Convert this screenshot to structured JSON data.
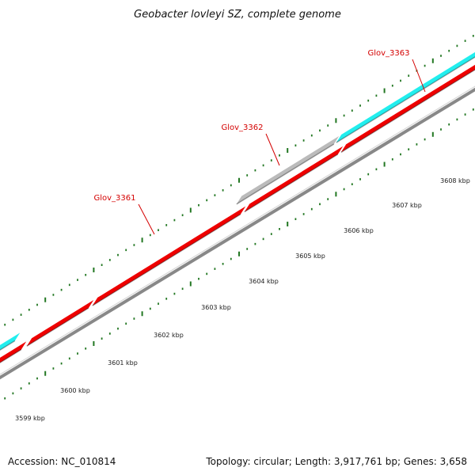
{
  "title": "Geobacter lovleyi SZ, complete genome",
  "footer": {
    "accession": "Accession: NC_010814",
    "summary": "Topology: circular; Length: 3,917,761 bp; Genes: 3,658"
  },
  "colors": {
    "forward_gene": "#22eeee",
    "reverse_gene": "#ee0000",
    "other_gene": "#bbbbbb",
    "backbone": "#888888",
    "tick": "#227722",
    "gene_label": "#d40000"
  },
  "gene_labels": [
    "Glov_3361",
    "Glov_3362",
    "Glov_3363"
  ],
  "kbp_labels": [
    "3599 kbp",
    "3600 kbp",
    "3601 kbp",
    "3602 kbp",
    "3603 kbp",
    "3604 kbp",
    "3605 kbp",
    "3606 kbp",
    "3607 kbp",
    "3608 kbp"
  ]
}
